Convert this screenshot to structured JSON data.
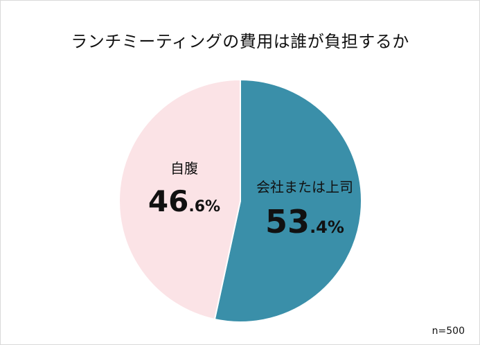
{
  "title": "ランチミーティングの費用は誰が負担するか",
  "note": "n=500",
  "chart_data": {
    "type": "pie",
    "title": "ランチミーティングの費用は誰が負担するか",
    "start_angle_deg": 0,
    "direction": "clockwise",
    "slices": [
      {
        "label": "会社または上司",
        "value": 53.4,
        "value_int": "53",
        "value_dec": ".4%",
        "color": "#3a8fa9"
      },
      {
        "label": "自腹",
        "value": 46.6,
        "value_int": "46",
        "value_dec": ".6%",
        "color": "#fbe3e6"
      }
    ],
    "legend": "none",
    "annotation": "n=500"
  }
}
